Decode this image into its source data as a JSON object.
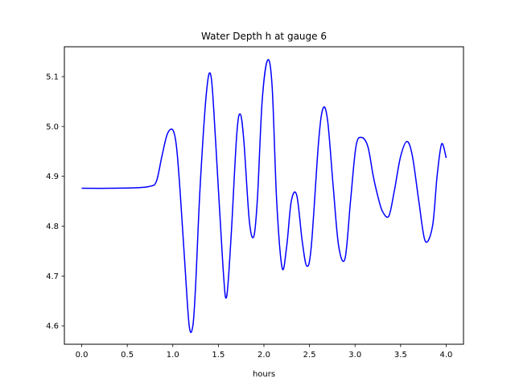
{
  "chart_data": {
    "type": "line",
    "title": "Water Depth h at gauge 6",
    "xlabel": "hours",
    "ylabel": "",
    "xlim": [
      -0.19,
      4.19
    ],
    "ylim": [
      4.563,
      5.16
    ],
    "x_ticks": [
      0.0,
      0.5,
      1.0,
      1.5,
      2.0,
      2.5,
      3.0,
      3.5,
      4.0
    ],
    "x_tick_labels": [
      "0.0",
      "0.5",
      "1.0",
      "1.5",
      "2.0",
      "2.5",
      "3.0",
      "3.5",
      "4.0"
    ],
    "y_ticks": [
      4.6,
      4.7,
      4.8,
      4.9,
      5.0,
      5.1
    ],
    "y_tick_labels": [
      "4.6",
      "4.7",
      "4.8",
      "4.9",
      "5.0",
      "5.1"
    ],
    "grid": false,
    "legend": "none",
    "series": [
      {
        "color": "#0000ff",
        "x": [
          0.0,
          0.3,
          0.6,
          0.75,
          0.82,
          0.88,
          0.94,
          1.0,
          1.04,
          1.08,
          1.13,
          1.18,
          1.22,
          1.25,
          1.3,
          1.37,
          1.42,
          1.47,
          1.55,
          1.59,
          1.64,
          1.7,
          1.74,
          1.78,
          1.84,
          1.89,
          1.93,
          1.98,
          2.04,
          2.09,
          2.14,
          2.2,
          2.25,
          2.3,
          2.36,
          2.42,
          2.47,
          2.52,
          2.6,
          2.65,
          2.7,
          2.76,
          2.82,
          2.89,
          2.95,
          3.01,
          3.07,
          3.14,
          3.2,
          3.25,
          3.3,
          3.37,
          3.43,
          3.5,
          3.57,
          3.63,
          3.7,
          3.77,
          3.85,
          3.9,
          3.95,
          4.0
        ],
        "y": [
          4.876,
          4.876,
          4.877,
          4.88,
          4.89,
          4.94,
          4.985,
          4.993,
          4.96,
          4.87,
          4.73,
          4.6,
          4.6,
          4.68,
          4.88,
          5.07,
          5.1,
          4.97,
          4.72,
          4.658,
          4.78,
          4.98,
          5.025,
          4.97,
          4.81,
          4.78,
          4.86,
          5.05,
          5.133,
          5.08,
          4.85,
          4.716,
          4.76,
          4.85,
          4.862,
          4.77,
          4.72,
          4.76,
          4.97,
          5.037,
          5.01,
          4.88,
          4.76,
          4.735,
          4.85,
          4.96,
          4.978,
          4.96,
          4.9,
          4.86,
          4.83,
          4.82,
          4.87,
          4.94,
          4.97,
          4.94,
          4.85,
          4.77,
          4.8,
          4.9,
          4.965,
          4.937
        ]
      }
    ]
  }
}
